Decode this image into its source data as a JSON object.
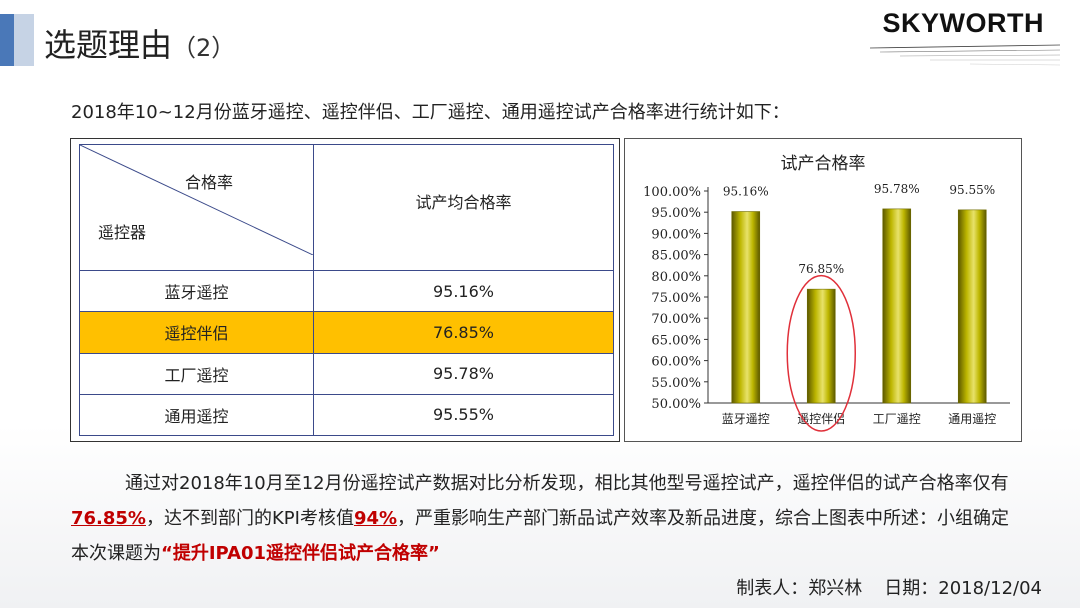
{
  "header": {
    "title": "选题理由",
    "title_suffix": "（2）",
    "brand": "SKYWORTH"
  },
  "intro": "2018年10~12月份蓝牙遥控、遥控伴侣、工厂遥控、通用遥控试产合格率进行统计如下：",
  "table": {
    "corner_top": "合格率",
    "corner_bottom": "遥控器",
    "value_header": "试产均合格率",
    "rows": [
      {
        "name": "蓝牙遥控",
        "value": "95.16%"
      },
      {
        "name": "遥控伴侣",
        "value": "76.85%"
      },
      {
        "name": "工厂遥控",
        "value": "95.78%"
      },
      {
        "name": "通用遥控",
        "value": "95.55%"
      }
    ],
    "highlight_color": "#ffc000"
  },
  "chart_data": {
    "type": "bar",
    "title": "试产合格率",
    "categories": [
      "蓝牙遥控",
      "遥控伴侣",
      "工厂遥控",
      "通用遥控"
    ],
    "values": [
      95.16,
      76.85,
      95.78,
      95.55
    ],
    "value_labels": [
      "95.16%",
      "76.85%",
      "95.78%",
      "95.55%"
    ],
    "ylim": [
      50,
      100
    ],
    "yticks": [
      "50.00%",
      "55.00%",
      "60.00%",
      "65.00%",
      "70.00%",
      "75.00%",
      "80.00%",
      "85.00%",
      "90.00%",
      "95.00%",
      "100.00%"
    ],
    "grid": false,
    "legend": "none",
    "bar_color": "#a8a200",
    "highlight_circle_color": "#e0303a",
    "highlighted_category": "遥控伴侣"
  },
  "summary": {
    "part1": "通过对2018年10月至12月份遥控试产数据对比分析发现，相比其他型号遥控试产，遥控伴侣的试产合格率仅有",
    "rate": "76.85%",
    "part2": "，达不到部门的KPI考核值",
    "kpi": "94%",
    "part3": "，严重影响生产部门新品试产效率及新品进度，综合上图表中所述：小组确定本次课题为",
    "topic": "“提升IPA01遥控伴侣试产合格率”",
    "highlight_color": "#c00000"
  },
  "footer": {
    "maker": "制表人：郑兴林",
    "date": "日期：2018/12/04"
  }
}
